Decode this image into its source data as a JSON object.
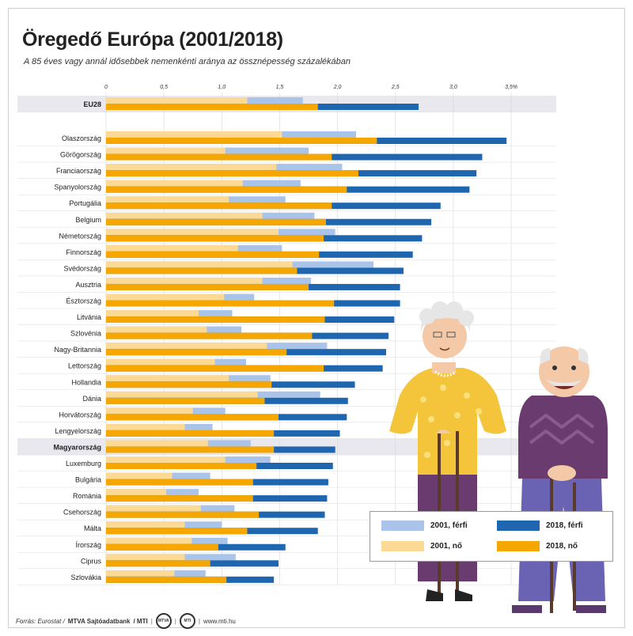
{
  "header": {
    "title": "Öregedő Európa (2001/2018)",
    "subtitle": "A 85 éves vagy annál idősebbek nemenkénti aránya az össznépesség százalékában"
  },
  "footer": {
    "source_label": "Forrás: Eurostat /",
    "agency": "MTVA Sajtóadatbank",
    "mti": "/ MTI",
    "logo1": "MTVA",
    "logo2": "MTI",
    "url": "www.mti.hu"
  },
  "legend": {
    "items": [
      {
        "label": "2001, férfi",
        "color": "#a9c4e8"
      },
      {
        "label": "2018, férfi",
        "color": "#1f66b0"
      },
      {
        "label": "2001, nő",
        "color": "#fcd995"
      },
      {
        "label": "2018, nő",
        "color": "#f5a700"
      }
    ]
  },
  "colors": {
    "male2001": "#a9c4e8",
    "male2018": "#1f66b0",
    "female2001": "#fcd995",
    "female2018": "#f5a700",
    "highlight_band": "#e8e8ee",
    "grid": "#d7d7d7"
  },
  "chart_data": {
    "type": "bar",
    "orientation": "horizontal",
    "title": "Öregedő Európa (2001/2018)",
    "subtitle": "A 85 éves vagy annál idősebbek nemenkénti aránya az össznépesség százalékában",
    "xlim": [
      0,
      3.5
    ],
    "xticks": [
      "0",
      "0,5",
      "1,0",
      "1,5",
      "2,0",
      "2,5",
      "3,0",
      "3,5%"
    ],
    "grid": true,
    "legend_placement": "bottom-right",
    "categories": [
      "EU28",
      "Olaszország",
      "Görögország",
      "Franciaország",
      "Spanyolország",
      "Portugália",
      "Belgium",
      "Németország",
      "Finnország",
      "Svédország",
      "Ausztria",
      "Észtország",
      "Litvánia",
      "Szlovénia",
      "Nagy-Britannia",
      "Lettország",
      "Hollandia",
      "Dánia",
      "Horvátország",
      "Lengyelország",
      "Magyarország",
      "Luxemburg",
      "Bulgária",
      "Románia",
      "Csehország",
      "Málta",
      "Írország",
      "Ciprus",
      "Szlovákia"
    ],
    "highlighted": [
      "EU28",
      "Magyarország"
    ],
    "series": [
      {
        "name": "2001, férfi",
        "values": [
          1.7,
          2.16,
          1.75,
          2.04,
          1.68,
          1.55,
          1.8,
          1.98,
          1.52,
          2.31,
          1.77,
          1.28,
          1.09,
          1.17,
          1.91,
          1.21,
          1.42,
          1.85,
          1.03,
          0.92,
          1.25,
          1.42,
          0.9,
          0.8,
          1.11,
          1.0,
          1.05,
          1.12,
          0.86
        ]
      },
      {
        "name": "2018, férfi",
        "values": [
          2.7,
          3.46,
          3.25,
          3.2,
          3.14,
          2.89,
          2.81,
          2.73,
          2.65,
          2.57,
          2.54,
          2.54,
          2.49,
          2.44,
          2.42,
          2.39,
          2.15,
          2.09,
          2.08,
          2.02,
          1.98,
          1.96,
          1.92,
          1.91,
          1.89,
          1.83,
          1.55,
          1.49,
          1.45
        ]
      },
      {
        "name": "2001, nő",
        "values": [
          1.22,
          1.52,
          1.03,
          1.47,
          1.18,
          1.06,
          1.35,
          1.49,
          1.14,
          1.61,
          1.35,
          1.02,
          0.8,
          0.87,
          1.39,
          0.94,
          1.06,
          1.31,
          0.75,
          0.68,
          0.88,
          1.03,
          0.57,
          0.52,
          0.82,
          0.68,
          0.74,
          0.68,
          0.59
        ]
      },
      {
        "name": "2018, nő",
        "values": [
          1.83,
          2.34,
          1.95,
          2.18,
          2.08,
          1.95,
          1.9,
          1.88,
          1.84,
          1.65,
          1.75,
          1.97,
          1.89,
          1.78,
          1.56,
          1.88,
          1.43,
          1.37,
          1.49,
          1.45,
          1.45,
          1.3,
          1.27,
          1.27,
          1.32,
          1.22,
          0.97,
          0.9,
          1.04
        ]
      }
    ]
  }
}
